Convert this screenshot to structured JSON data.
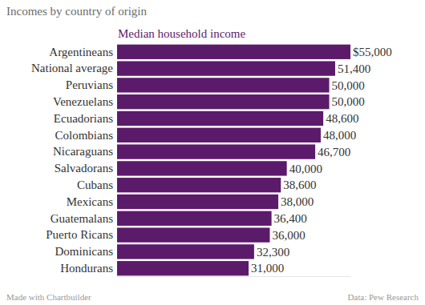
{
  "chart_data": {
    "type": "bar",
    "orientation": "horizontal",
    "title": "Incomes by country of origin",
    "subtitle": "Median household income",
    "categories": [
      "Argentineans",
      "National average",
      "Peruvians",
      "Venezuelans",
      "Ecuadorians",
      "Colombians",
      "Nicaraguans",
      "Salvadorans",
      "Cubans",
      "Mexicans",
      "Guatemalans",
      "Puerto Ricans",
      "Dominicans",
      "Hondurans"
    ],
    "values": [
      55000,
      51400,
      50000,
      50000,
      48600,
      48000,
      46700,
      40000,
      38600,
      38000,
      36400,
      36000,
      32300,
      31000
    ],
    "value_labels": [
      "$55,000",
      "51,400",
      "50,000",
      "50,000",
      "48,600",
      "48,000",
      "46,700",
      "40,000",
      "38,600",
      "38,000",
      "36,400",
      "36,000",
      "32,300",
      "31,000"
    ],
    "color": "#5c1a6b",
    "xlim": [
      0,
      55000
    ],
    "xticks": [],
    "grid": false,
    "data_labels": true,
    "tick_labels": "y",
    "credit": "Made with Chartbuilder",
    "source": "Data: Pew Research"
  }
}
